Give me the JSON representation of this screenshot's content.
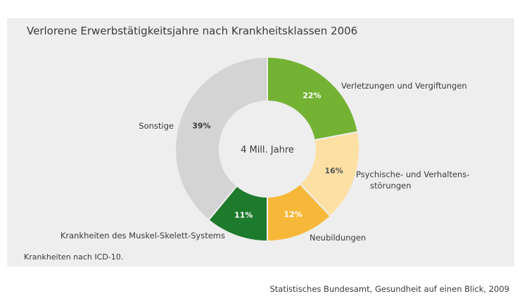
{
  "footnote": "Krankheiten nach ICD-10.",
  "source": "Statistisches Bundesamt, Gesundheit auf einen Blick, 2009",
  "chart_data": {
    "type": "pie",
    "donut": true,
    "title": "Verlorene Erwerbstätigkeitsjahre nach Krankheitsklassen 2006",
    "center_label": "4 Mill. Jahre",
    "slices": [
      {
        "label": "Verletzungen und Vergiftungen",
        "value": 22,
        "value_label": "22%",
        "color": "#74b234",
        "text_color": "#ffffff"
      },
      {
        "label": "Psychische- und Verhaltens-störungen",
        "label_lines": [
          "Psychische- und Verhaltens-",
          "störungen"
        ],
        "value": 16,
        "value_label": "16%",
        "color": "#fde0a4",
        "text_color": "#555555"
      },
      {
        "label": "Neubildungen",
        "value": 12,
        "value_label": "12%",
        "color": "#f7b83a",
        "text_color": "#ffffff"
      },
      {
        "label": "Krankheiten des Muskel-Skelett-Systems",
        "value": 11,
        "value_label": "11%",
        "color": "#1e7a2c",
        "text_color": "#ffffff"
      },
      {
        "label": "Sonstige",
        "value": 39,
        "value_label": "39%",
        "color": "#d4d4d4",
        "text_color": "#3a3a3a"
      }
    ]
  }
}
